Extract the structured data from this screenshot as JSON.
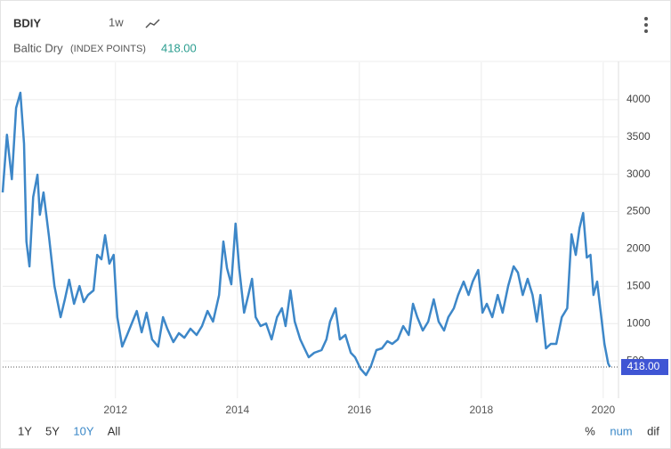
{
  "header": {
    "symbol": "BDIY",
    "interval": "1w",
    "name": "Baltic Dry",
    "unit": "(INDEX POINTS)"
  },
  "controls": {
    "ranges": [
      "1Y",
      "5Y",
      "10Y",
      "All"
    ],
    "modes": [
      "%",
      "num",
      "dif"
    ]
  },
  "chart_data": {
    "type": "line",
    "color": "#3d87c8",
    "x": [
      2010.15,
      2010.22,
      2010.3,
      2010.37,
      2010.44,
      2010.5,
      2010.54,
      2010.59,
      2010.65,
      2010.72,
      2010.76,
      2010.82,
      2010.91,
      2011.0,
      2011.1,
      2011.17,
      2011.24,
      2011.32,
      2011.41,
      2011.48,
      2011.55,
      2011.64,
      2011.7,
      2011.77,
      2011.83,
      2011.9,
      2011.97,
      2012.03,
      2012.11,
      2012.19,
      2012.28,
      2012.35,
      2012.43,
      2012.51,
      2012.6,
      2012.7,
      2012.78,
      2012.85,
      2012.95,
      2013.04,
      2013.13,
      2013.23,
      2013.33,
      2013.42,
      2013.51,
      2013.6,
      2013.7,
      2013.77,
      2013.83,
      2013.9,
      2013.97,
      2014.03,
      2014.11,
      2014.18,
      2014.24,
      2014.3,
      2014.38,
      2014.47,
      2014.56,
      2014.65,
      2014.73,
      2014.79,
      2014.87,
      2014.94,
      2015.03,
      2015.1,
      2015.17,
      2015.26,
      2015.38,
      2015.46,
      2015.52,
      2015.61,
      2015.68,
      2015.77,
      2015.86,
      2015.93,
      2016.02,
      2016.11,
      2016.19,
      2016.28,
      2016.37,
      2016.46,
      2016.54,
      2016.63,
      2016.72,
      2016.81,
      2016.88,
      2016.95,
      2017.04,
      2017.13,
      2017.22,
      2017.3,
      2017.39,
      2017.46,
      2017.55,
      2017.62,
      2017.71,
      2017.79,
      2017.86,
      2017.95,
      2018.02,
      2018.09,
      2018.18,
      2018.27,
      2018.35,
      2018.44,
      2018.53,
      2018.6,
      2018.68,
      2018.76,
      2018.84,
      2018.91,
      2018.97,
      2019.06,
      2019.14,
      2019.23,
      2019.32,
      2019.41,
      2019.48,
      2019.55,
      2019.61,
      2019.67,
      2019.73,
      2019.79,
      2019.84,
      2019.9,
      2019.96,
      2020.02,
      2020.08,
      2020.11
    ],
    "values": [
      2757,
      3530,
      2935,
      3890,
      4093,
      3412,
      2100,
      1766,
      2697,
      2995,
      2458,
      2757,
      2160,
      1503,
      1086,
      1325,
      1587,
      1265,
      1503,
      1289,
      1384,
      1444,
      1921,
      1862,
      2184,
      1802,
      1921,
      1086,
      692,
      847,
      1026,
      1169,
      883,
      1146,
      788,
      692,
      1086,
      931,
      752,
      871,
      811,
      931,
      847,
      967,
      1169,
      1026,
      1384,
      2100,
      1742,
      1527,
      2339,
      1742,
      1146,
      1384,
      1599,
      1086,
      967,
      1002,
      788,
      1086,
      1205,
      967,
      1444,
      1026,
      788,
      668,
      549,
      609,
      644,
      788,
      1026,
      1205,
      788,
      847,
      609,
      549,
      394,
      310,
      430,
      644,
      668,
      764,
      728,
      788,
      967,
      847,
      1265,
      1086,
      907,
      1026,
      1325,
      1026,
      907,
      1086,
      1205,
      1384,
      1563,
      1384,
      1563,
      1718,
      1146,
      1265,
      1086,
      1384,
      1146,
      1503,
      1766,
      1683,
      1384,
      1599,
      1384,
      1026,
      1384,
      668,
      728,
      728,
      1086,
      1205,
      2196,
      1921,
      2279,
      2482,
      1885,
      1921,
      1384,
      1563,
      1146,
      728,
      465,
      418
    ],
    "xlim": [
      2010.15,
      2020.25
    ],
    "xticks": [
      2012,
      2014,
      2016,
      2018,
      2020
    ],
    "ylim": [
      0,
      4500
    ],
    "yticks": [
      500,
      1000,
      1500,
      2000,
      2500,
      3000,
      3500,
      4000
    ],
    "grid": true,
    "last_value": {
      "value": 418,
      "label": "418.00"
    }
  }
}
